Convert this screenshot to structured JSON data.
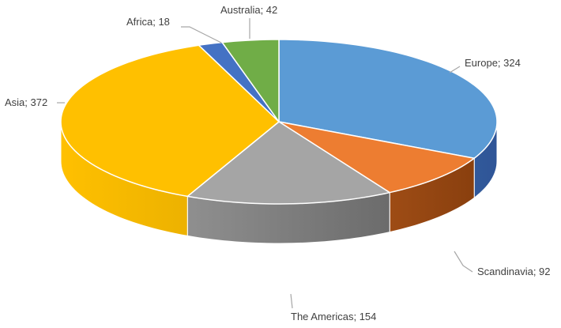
{
  "chart_data": {
    "type": "pie",
    "style": "3d",
    "legend": "none",
    "categories": [
      "Europe",
      "Scandinavia",
      "The Americas",
      "Asia",
      "Africa",
      "Australia"
    ],
    "values": [
      324,
      92,
      154,
      372,
      18,
      42
    ],
    "slices": [
      {
        "label": "Europe",
        "value": 324,
        "display": "Europe; 324",
        "color": "#5B9BD5",
        "side": "#2F5597"
      },
      {
        "label": "Scandinavia",
        "value": 92,
        "display": "Scandinavia; 92",
        "color": "#ED7D31",
        "side": "#843C0C"
      },
      {
        "label": "The Americas",
        "value": 154,
        "display": "The Americas; 154",
        "color": "#A5A5A5",
        "side": "#595959"
      },
      {
        "label": "Asia",
        "value": 372,
        "display": "Asia; 372",
        "color": "#FFC000",
        "side": "#BF8F00"
      },
      {
        "label": "Africa",
        "value": 18,
        "display": "Africa; 18",
        "color": "#4472C4",
        "side": "#203864"
      },
      {
        "label": "Australia",
        "value": 42,
        "display": "Australia; 42",
        "color": "#70AD47",
        "side": "#375623"
      }
    ]
  }
}
